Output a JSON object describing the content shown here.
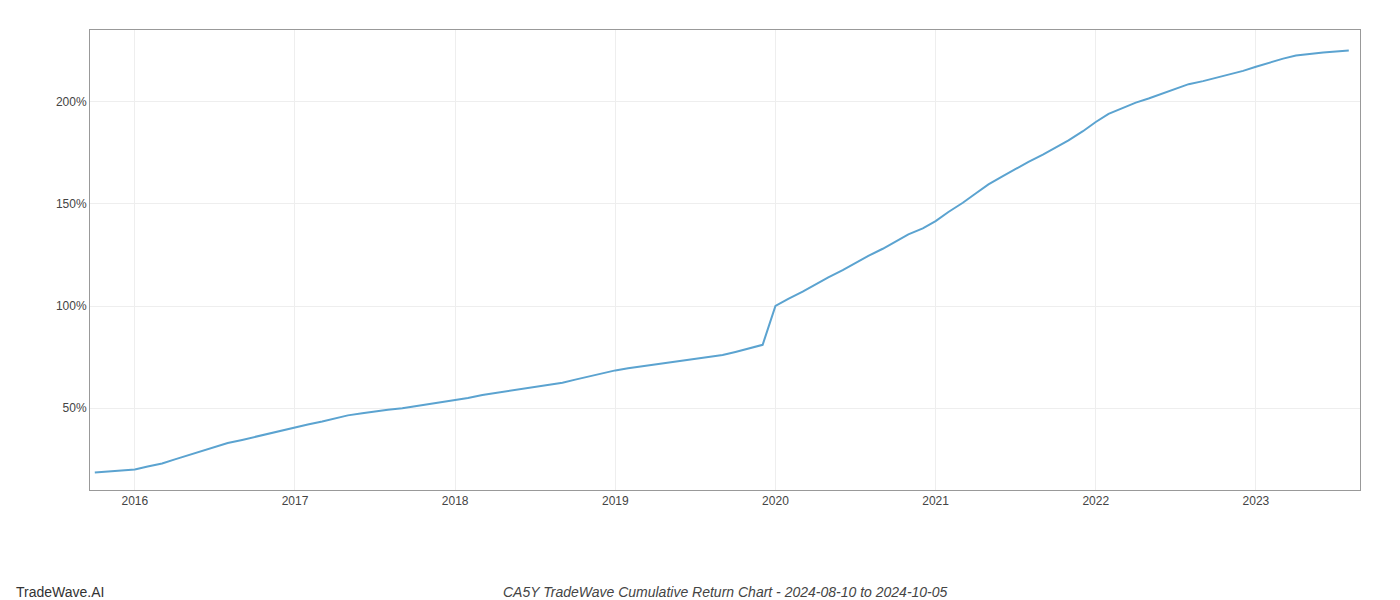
{
  "chart_data": {
    "type": "line",
    "title": "CA5Y TradeWave Cumulative Return Chart - 2024-08-10 to 2024-10-05",
    "annotations": [
      "TradeWave.AI"
    ],
    "color": "#5ba3d0",
    "grid": true,
    "x": [
      2015.75,
      2015.83,
      2015.92,
      2016.0,
      2016.08,
      2016.17,
      2016.25,
      2016.33,
      2016.42,
      2016.5,
      2016.58,
      2016.67,
      2016.75,
      2016.83,
      2016.92,
      2017.0,
      2017.08,
      2017.17,
      2017.25,
      2017.33,
      2017.42,
      2017.5,
      2017.58,
      2017.67,
      2017.75,
      2017.83,
      2017.92,
      2018.0,
      2018.08,
      2018.17,
      2018.25,
      2018.33,
      2018.42,
      2018.5,
      2018.58,
      2018.67,
      2018.75,
      2018.83,
      2018.92,
      2019.0,
      2019.08,
      2019.17,
      2019.25,
      2019.33,
      2019.42,
      2019.5,
      2019.58,
      2019.67,
      2019.75,
      2019.83,
      2019.92,
      2020.0,
      2020.08,
      2020.17,
      2020.25,
      2020.33,
      2020.42,
      2020.5,
      2020.58,
      2020.67,
      2020.75,
      2020.83,
      2020.92,
      2021.0,
      2021.08,
      2021.17,
      2021.25,
      2021.33,
      2021.42,
      2021.5,
      2021.58,
      2021.67,
      2021.75,
      2021.83,
      2021.92,
      2022.0,
      2022.08,
      2022.17,
      2022.25,
      2022.33,
      2022.42,
      2022.5,
      2022.58,
      2022.67,
      2022.75,
      2022.83,
      2022.92,
      2023.0,
      2023.08,
      2023.17,
      2023.25,
      2023.42,
      2023.58
    ],
    "values": [
      18.5,
      19.0,
      19.5,
      20.0,
      21.5,
      23.0,
      25.0,
      27.0,
      29.0,
      31.0,
      33.0,
      34.5,
      36.0,
      37.5,
      39.0,
      40.5,
      42.0,
      43.5,
      45.0,
      46.5,
      47.5,
      48.5,
      49.3,
      50.0,
      51.0,
      52.0,
      53.0,
      54.0,
      55.0,
      56.5,
      57.5,
      58.5,
      59.5,
      60.5,
      61.5,
      62.5,
      64.0,
      65.5,
      67.0,
      68.5,
      69.5,
      70.5,
      71.5,
      72.5,
      73.5,
      74.2,
      75.0,
      76.0,
      77.5,
      79.0,
      81.0,
      100.0,
      103.5,
      107.0,
      110.5,
      114.0,
      117.5,
      121.0,
      124.5,
      128.0,
      131.5,
      135.0,
      138.0,
      141.5,
      146.0,
      150.5,
      155.0,
      159.5,
      163.5,
      167.0,
      170.5,
      174.0,
      177.5,
      181.0,
      185.5,
      190.0,
      194.0,
      197.0,
      199.5,
      201.5,
      204.0,
      206.5,
      208.5,
      210.0,
      211.5,
      213.0,
      215.0,
      217.0,
      219.0,
      221.0,
      222.5,
      224.0,
      225.0
    ],
    "xlim": [
      2015.72,
      2023.65
    ],
    "xticks": [
      2016,
      2017,
      2018,
      2019,
      2020,
      2021,
      2022,
      2023
    ],
    "ylim": [
      10,
      235
    ],
    "yticks": [
      {
        "value": 50,
        "label": "50%"
      },
      {
        "value": 100,
        "label": "100%"
      },
      {
        "value": 150,
        "label": "150%"
      },
      {
        "value": 200,
        "label": "200%"
      }
    ]
  }
}
